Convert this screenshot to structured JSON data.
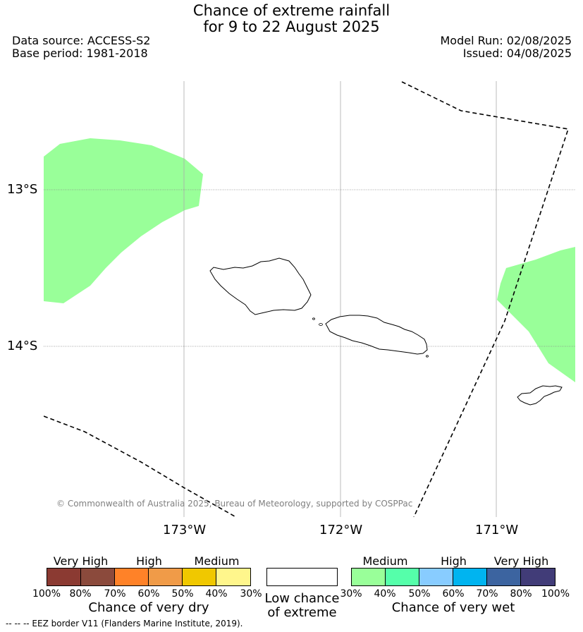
{
  "header": {
    "title_line1": "Chance of extreme rainfall",
    "title_line2": "for 9 to 22 August 2025",
    "data_source": "Data source: ACCESS-S2",
    "base_period": "Base period: 1981-2018",
    "model_run": "Model Run: 02/08/2025",
    "issued": "Issued: 04/08/2025"
  },
  "map": {
    "lat_labels": [
      "13°S",
      "14°S"
    ],
    "lon_labels": [
      "173°W",
      "172°W",
      "171°W"
    ],
    "copyright": "© Commonwealth of Australia 2025, Bureau of Meteorology, supported by COSPPac",
    "regions": [
      {
        "name": "west-wet-area",
        "category": "Medium",
        "color": "#99ff99"
      },
      {
        "name": "east-wet-area",
        "category": "Medium",
        "color": "#99ff99"
      }
    ]
  },
  "legend": {
    "dry": {
      "headings": [
        "Very High",
        "High",
        "Medium"
      ],
      "colors": [
        "#8b3a32",
        "#8b4a3c",
        "#ff8228",
        "#f09b48",
        "#f0c800",
        "#fff68c"
      ],
      "ticks": [
        "100%",
        "80%",
        "70%",
        "60%",
        "50%",
        "40%",
        "30%"
      ],
      "caption": "Chance of very dry"
    },
    "low": {
      "caption_line1": "Low chance",
      "caption_line2": "of extreme",
      "color": "#ffffff"
    },
    "wet": {
      "headings": [
        "Medium",
        "High",
        "Very High"
      ],
      "colors": [
        "#99ff99",
        "#55ffaa",
        "#88ccff",
        "#00b4f0",
        "#3c64a0",
        "#413c78"
      ],
      "ticks": [
        "30%",
        "40%",
        "50%",
        "60%",
        "70%",
        "80%",
        "100%"
      ],
      "caption": "Chance of very wet"
    }
  },
  "footnote": "--  --  -- EEZ border V11 (Flanders Marine Institute, 2019)."
}
